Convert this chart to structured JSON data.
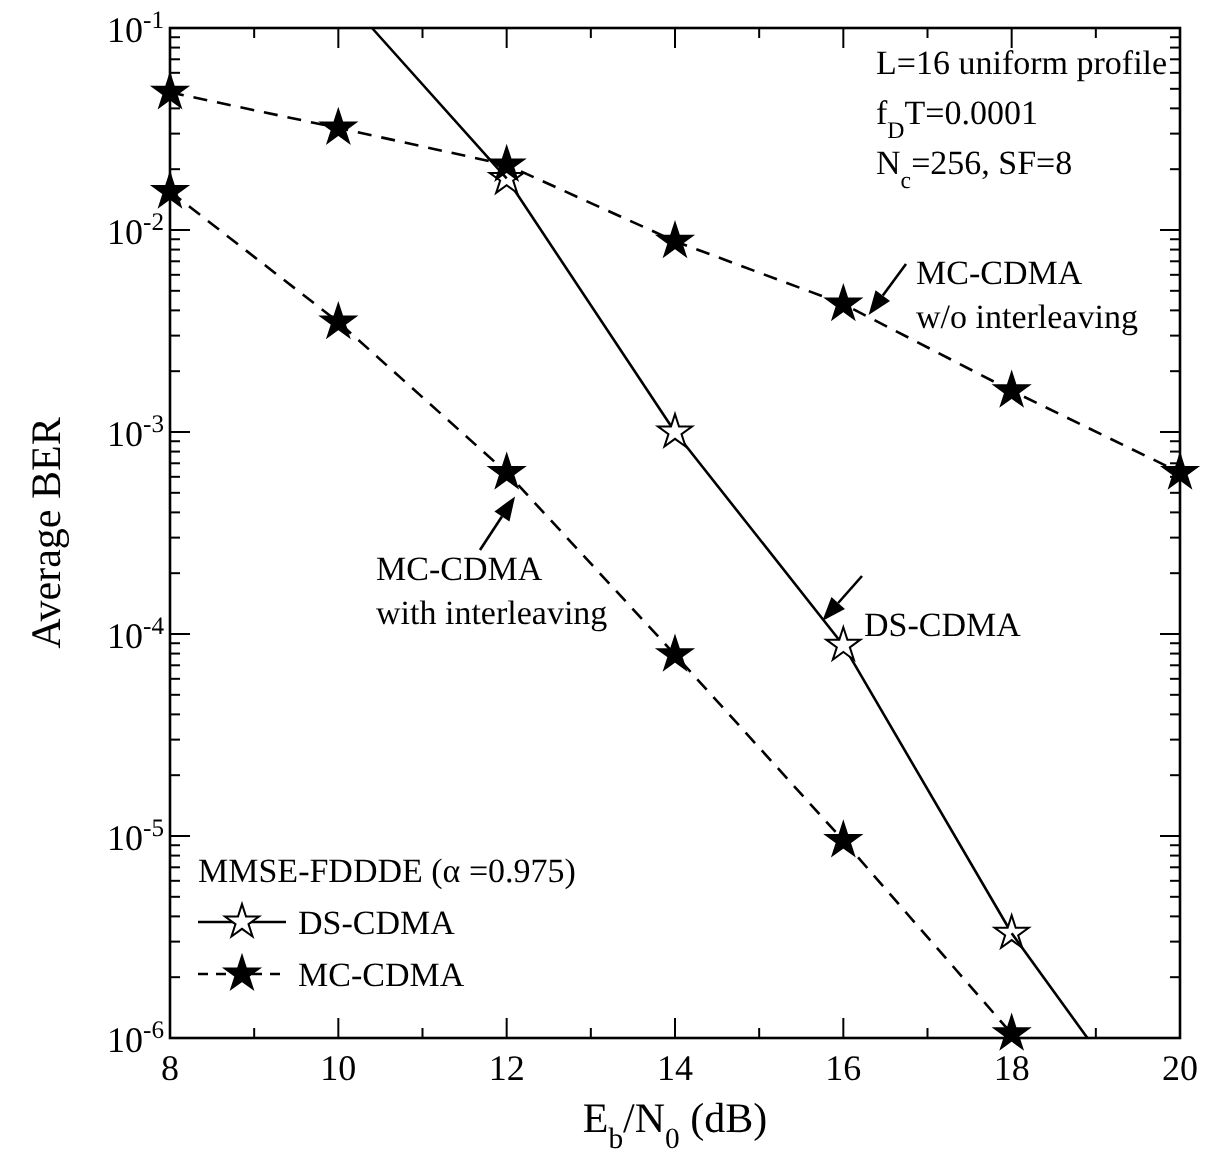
{
  "chart_data": {
    "type": "line",
    "xlabel": "E$_{b}$/N$_{0}$ (dB)",
    "ylabel": "Average BER",
    "legend_title": "MMSE-FDDDE (α =0.975)",
    "legend": "bottom left",
    "log": "y",
    "grid": false,
    "marker": "star",
    "xlim": [
      8,
      20
    ],
    "ylim": [
      1e-06,
      0.1
    ],
    "xticks": [
      8,
      {
        "value": 9,
        "label": null
      },
      10,
      {
        "value": 11,
        "label": null
      },
      12,
      {
        "value": 13,
        "label": null
      },
      14,
      {
        "value": 15,
        "label": null
      },
      16,
      {
        "value": 17,
        "label": null
      },
      18,
      {
        "value": 19,
        "label": null
      },
      20
    ],
    "yticks": [
      {
        "value": 1e-06,
        "label": "10$^{-6}$"
      },
      {
        "value": 2e-06,
        "label": null
      },
      {
        "value": 3e-06,
        "label": null
      },
      {
        "value": 4e-06,
        "label": null
      },
      {
        "value": 5e-06,
        "label": null
      },
      {
        "value": 6e-06,
        "label": null
      },
      {
        "value": 7e-06,
        "label": null
      },
      {
        "value": 8e-06,
        "label": null
      },
      {
        "value": 9e-06,
        "label": null
      },
      {
        "value": 1e-05,
        "label": "10$^{-5}$"
      },
      {
        "value": 2e-05,
        "label": null
      },
      {
        "value": 3e-05,
        "label": null
      },
      {
        "value": 4e-05,
        "label": null
      },
      {
        "value": 5e-05,
        "label": null
      },
      {
        "value": 6e-05,
        "label": null
      },
      {
        "value": 7e-05,
        "label": null
      },
      {
        "value": 8e-05,
        "label": null
      },
      {
        "value": 9e-05,
        "label": null
      },
      {
        "value": 0.0001,
        "label": "10$^{-4}$"
      },
      {
        "value": 0.0002,
        "label": null
      },
      {
        "value": 0.0003,
        "label": null
      },
      {
        "value": 0.0004,
        "label": null
      },
      {
        "value": 0.0005,
        "label": null
      },
      {
        "value": 0.0006,
        "label": null
      },
      {
        "value": 0.0007,
        "label": null
      },
      {
        "value": 0.0008,
        "label": null
      },
      {
        "value": 0.0009,
        "label": null
      },
      {
        "value": 0.001,
        "label": "10$^{-3}$"
      },
      {
        "value": 0.002,
        "label": null
      },
      {
        "value": 0.003,
        "label": null
      },
      {
        "value": 0.004,
        "label": null
      },
      {
        "value": 0.005,
        "label": null
      },
      {
        "value": 0.006,
        "label": null
      },
      {
        "value": 0.007,
        "label": null
      },
      {
        "value": 0.008,
        "label": null
      },
      {
        "value": 0.009,
        "label": null
      },
      {
        "value": 0.01,
        "label": "10$^{-2}$"
      },
      {
        "value": 0.02,
        "label": null
      },
      {
        "value": 0.03,
        "label": null
      },
      {
        "value": 0.04,
        "label": null
      },
      {
        "value": 0.05,
        "label": null
      },
      {
        "value": 0.06,
        "label": null
      },
      {
        "value": 0.07,
        "label": null
      },
      {
        "value": 0.08,
        "label": null
      },
      {
        "value": 0.09,
        "label": null
      },
      {
        "value": 0.1,
        "label": "10$^{-1}$"
      }
    ],
    "series": [
      {
        "name": "DS-CDMA",
        "color": "#000000",
        "line_style": "solid",
        "x": [
          12,
          14,
          16,
          18
        ],
        "values": [
          0.018,
          0.001,
          8.8e-05,
          3.3e-06
        ]
      },
      {
        "color": "#000000",
        "line_style": "solid",
        "marker": "none",
        "x": [
          10.4,
          12,
          15,
          18,
          18.9
        ],
        "values": [
          0.1,
          0.018,
          null,
          3.3e-06,
          1e-06
        ]
      },
      {
        "name": "MC-CDMA",
        "color": "#000000",
        "line_style": "dashed",
        "x": [
          8,
          10,
          12,
          14,
          16,
          18,
          20
        ],
        "values": [
          0.048,
          0.032,
          0.021,
          0.0088,
          0.0043,
          0.0016,
          0.00063
        ]
      },
      {
        "color": "#000000",
        "line_style": "dashed",
        "x": [
          8,
          10,
          12,
          14,
          16,
          18
        ],
        "values": [
          0.0155,
          0.0035,
          0.00063,
          7.9e-05,
          9.5e-06,
          1.05e-06
        ]
      }
    ],
    "annotations": [
      "L=16 uniform profile",
      "f$_{D}$T=0.0001",
      "N$_{c}$=256, SF=8",
      {
        "text": "MC-CDMA\nw/o interleaving",
        "x": 16.3,
        "y": 0.0038
      },
      {
        "text": "DS-CDMA",
        "x": 15.75,
        "y": 0.000116
      },
      {
        "text": "MC-CDMA\nwith interleaving",
        "x": 12.1,
        "y": 0.00048
      }
    ]
  }
}
